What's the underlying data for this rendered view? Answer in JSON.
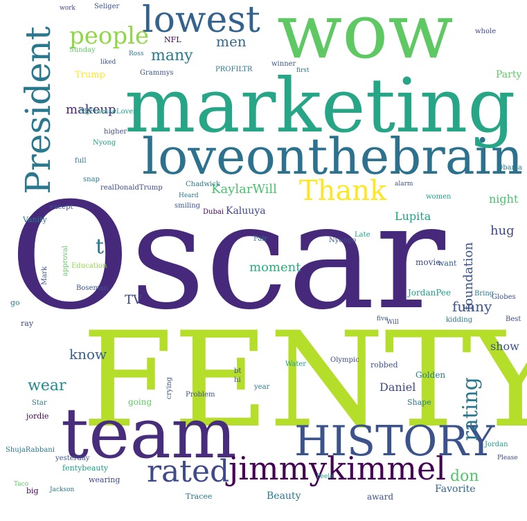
{
  "words": [
    {
      "text": "Oscar",
      "color": "#46297a"
    },
    {
      "text": "FENTY",
      "color": "#b5de2b"
    },
    {
      "text": "marketing",
      "color": "#26a587"
    },
    {
      "text": "wow",
      "color": "#5ec962"
    },
    {
      "text": "loveonthebrain",
      "color": "#2c728e"
    },
    {
      "text": "team",
      "color": "#472d7b"
    },
    {
      "text": "HISTORY",
      "color": "#3b528b"
    },
    {
      "text": "lowest",
      "color": "#33638d"
    },
    {
      "text": "President",
      "color": "#2a788e"
    },
    {
      "text": "jimmykimmel",
      "color": "#440154"
    },
    {
      "text": "rated",
      "color": "#3e4a89"
    },
    {
      "text": "Thank",
      "color": "#fde725"
    },
    {
      "text": "people",
      "color": "#8fd744"
    },
    {
      "text": "many",
      "color": "#2a788e"
    },
    {
      "text": "men",
      "color": "#31688e"
    },
    {
      "text": "makeup",
      "color": "#482576"
    },
    {
      "text": "KaylarWill",
      "color": "#4ac16d"
    },
    {
      "text": "TV",
      "color": "#3e4a89"
    },
    {
      "text": "know",
      "color": "#355f8d"
    },
    {
      "text": "wear",
      "color": "#23898e"
    },
    {
      "text": "funny",
      "color": "#3b528b"
    },
    {
      "text": "moment",
      "color": "#29af7f"
    },
    {
      "text": "rating",
      "color": "#2a788e"
    },
    {
      "text": "foundation",
      "color": "#3b528b"
    },
    {
      "text": "don",
      "color": "#52c569"
    },
    {
      "text": "Kaluuya",
      "color": "#3e4a89"
    },
    {
      "text": "Lupita",
      "color": "#1fa088"
    },
    {
      "text": "night",
      "color": "#4ac16d"
    },
    {
      "text": "hug",
      "color": "#3e4a89"
    },
    {
      "text": "show",
      "color": "#3b528b"
    },
    {
      "text": "Daniel",
      "color": "#3e4a89"
    },
    {
      "text": "Golden",
      "color": "#2a788e"
    },
    {
      "text": "Favorite",
      "color": "#31688e"
    },
    {
      "text": "Beauty",
      "color": "#2a788e"
    },
    {
      "text": "award",
      "color": "#3b528b"
    },
    {
      "text": "Party",
      "color": "#5ec962"
    },
    {
      "text": "Trump",
      "color": "#fde725"
    },
    {
      "text": "NFL",
      "color": "#440154"
    },
    {
      "text": "Grammys",
      "color": "#3b528b"
    },
    {
      "text": "PROFILTR",
      "color": "#2a788e"
    },
    {
      "text": "MJFinesseLover",
      "color": "#1fa088"
    },
    {
      "text": "Chadwick",
      "color": "#2a788e"
    },
    {
      "text": "realDonaldTrump",
      "color": "#3e4a89"
    },
    {
      "text": "Obama",
      "color": "#2a788e"
    },
    {
      "text": "JordanPee",
      "color": "#1fa088"
    },
    {
      "text": "Boseman",
      "color": "#3b528b"
    },
    {
      "text": "Education",
      "color": "#8fd744"
    },
    {
      "text": "jordie",
      "color": "#440154"
    },
    {
      "text": "wearing",
      "color": "#3e4a89"
    },
    {
      "text": "fentybeauty",
      "color": "#1fa088"
    },
    {
      "text": "yesterday",
      "color": "#3b528b"
    },
    {
      "text": "ShujaRabbani",
      "color": "#2a788e"
    },
    {
      "text": "Taco",
      "color": "#5ec962"
    },
    {
      "text": "big",
      "color": "#440154"
    },
    {
      "text": "Jackson",
      "color": "#2a788e"
    },
    {
      "text": "Problem",
      "color": "#3b528b"
    },
    {
      "text": "Water",
      "color": "#1fa088"
    },
    {
      "text": "Olympic",
      "color": "#3e4a89"
    },
    {
      "text": "robbed",
      "color": "#3b528b"
    },
    {
      "text": "Shape",
      "color": "#2a788e"
    },
    {
      "text": "Jordan",
      "color": "#1fa088"
    },
    {
      "text": "Please",
      "color": "#3e4a89"
    },
    {
      "text": "Globes",
      "color": "#3b528b"
    },
    {
      "text": "kidding",
      "color": "#2a788e"
    },
    {
      "text": "Bring",
      "color": "#2a788e"
    },
    {
      "text": "movie",
      "color": "#3e4a89"
    },
    {
      "text": "want",
      "color": "#355f8d"
    },
    {
      "text": "Fair",
      "color": "#2a788e"
    },
    {
      "text": "Nyongo",
      "color": "#3b528b"
    },
    {
      "text": "Late",
      "color": "#1fa088"
    },
    {
      "text": "Dubai",
      "color": "#440154"
    },
    {
      "text": "smiling",
      "color": "#3b528b"
    },
    {
      "text": "Heard",
      "color": "#2a788e"
    },
    {
      "text": "Vanity",
      "color": "#2a788e"
    },
    {
      "text": "except",
      "color": "#3b528b"
    },
    {
      "text": "full",
      "color": "#2a788e"
    },
    {
      "text": "higher",
      "color": "#3e4a89"
    },
    {
      "text": "Nyong",
      "color": "#1fa088"
    },
    {
      "text": "snap",
      "color": "#2a788e"
    },
    {
      "text": "liked",
      "color": "#3b528b"
    },
    {
      "text": "Ross",
      "color": "#2a788e"
    },
    {
      "text": "Sunday",
      "color": "#5ec962"
    },
    {
      "text": "Seliger",
      "color": "#3b528b"
    },
    {
      "text": "work",
      "color": "#3e4a89"
    },
    {
      "text": "whole",
      "color": "#3e4a89"
    },
    {
      "text": "winner",
      "color": "#3b528b"
    },
    {
      "text": "first",
      "color": "#2a788e"
    },
    {
      "text": "alarm",
      "color": "#3b528b"
    },
    {
      "text": "women",
      "color": "#1fa088"
    },
    {
      "text": "Star",
      "color": "#2a788e"
    },
    {
      "text": "Best",
      "color": "#3e4a89"
    },
    {
      "text": "Tracee",
      "color": "#2a788e"
    },
    {
      "text": "Peele",
      "color": "#1fa088"
    },
    {
      "text": "five",
      "color": "#3b528b"
    },
    {
      "text": "Will",
      "color": "#3e4a89"
    },
    {
      "text": "ray",
      "color": "#3e4a89"
    },
    {
      "text": "go",
      "color": "#2a788e"
    },
    {
      "text": "going",
      "color": "#5ec962"
    },
    {
      "text": "crying",
      "color": "#3b528b"
    },
    {
      "text": "hi",
      "color": "#3e4a89"
    },
    {
      "text": "bt",
      "color": "#3e4a89"
    },
    {
      "text": "year",
      "color": "#2a788e"
    },
    {
      "text": "Mark",
      "color": "#3b528b"
    },
    {
      "text": "t",
      "color": "#2a788e"
    },
    {
      "text": "approval",
      "color": "#5ec962"
    }
  ]
}
